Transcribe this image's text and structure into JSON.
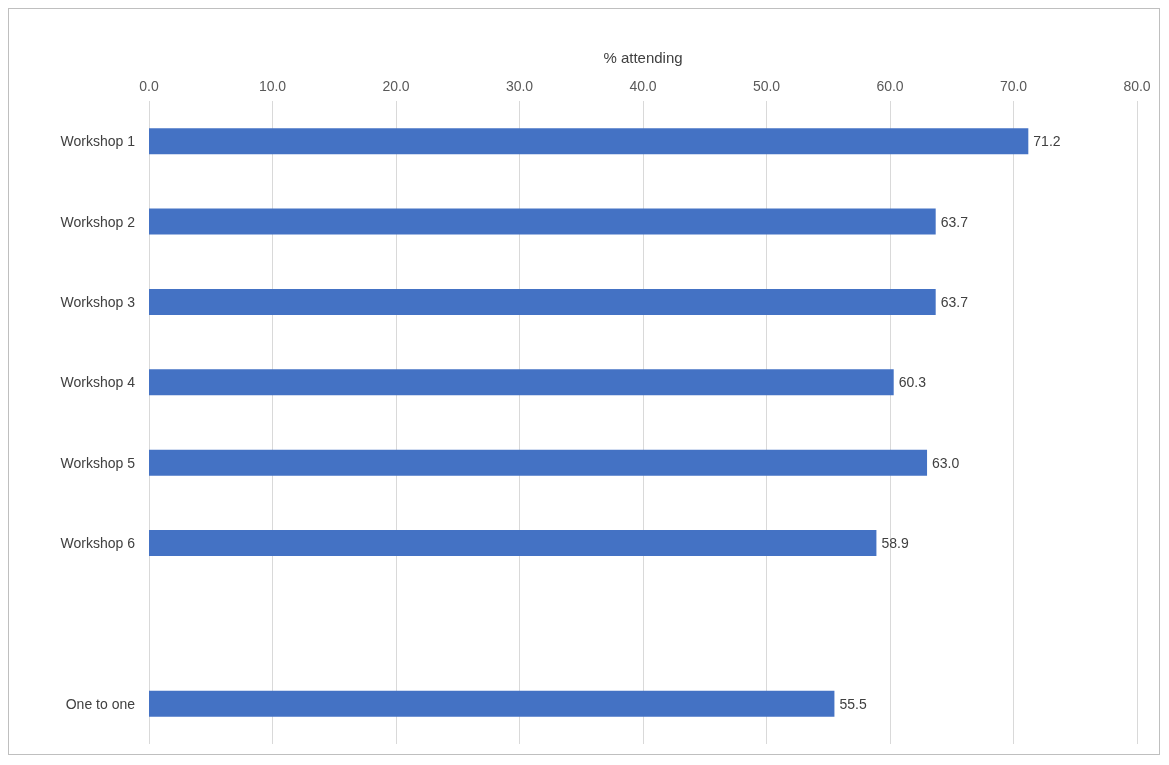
{
  "chart_data": {
    "type": "bar",
    "orientation": "horizontal",
    "xlabel": "% attending",
    "categories": [
      "Workshop 1",
      "Workshop 2",
      "Workshop 3",
      "Workshop 4",
      "Workshop 5",
      "Workshop 6",
      null,
      "One to one"
    ],
    "values": [
      71.2,
      63.7,
      63.7,
      60.3,
      63.0,
      58.9,
      null,
      55.5
    ],
    "value_labels": [
      "71.2",
      "63.7",
      "63.7",
      "60.3",
      "63.0",
      "58.9",
      null,
      "55.5"
    ],
    "color": "#4472c4",
    "xlim": [
      0,
      80
    ],
    "xticks": [
      {
        "value": 0,
        "label": "0.0"
      },
      {
        "value": 10,
        "label": "10.0"
      },
      {
        "value": 20,
        "label": "20.0"
      },
      {
        "value": 30,
        "label": "30.0"
      },
      {
        "value": 40,
        "label": "40.0"
      },
      {
        "value": 50,
        "label": "50.0"
      },
      {
        "value": 60,
        "label": "60.0"
      },
      {
        "value": 70,
        "label": "70.0"
      },
      {
        "value": 80,
        "label": "80.0"
      }
    ],
    "grid": true
  }
}
